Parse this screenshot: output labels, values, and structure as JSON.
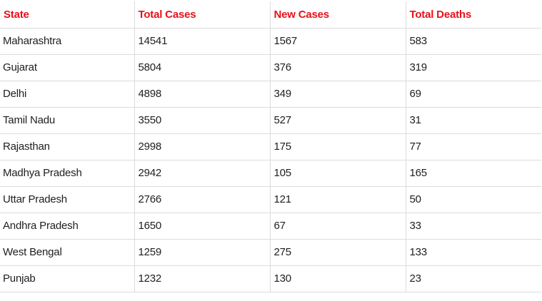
{
  "table": {
    "headers": [
      "State",
      "Total Cases",
      "New Cases",
      "Total Deaths"
    ],
    "rows": [
      [
        "Maharashtra",
        "14541",
        "1567",
        "583"
      ],
      [
        "Gujarat",
        "5804",
        "376",
        "319"
      ],
      [
        "Delhi",
        "4898",
        "349",
        "69"
      ],
      [
        "Tamil Nadu",
        "3550",
        "527",
        "31"
      ],
      [
        "Rajasthan",
        "2998",
        "175",
        "77"
      ],
      [
        "Madhya Pradesh",
        "2942",
        "105",
        "165"
      ],
      [
        "Uttar Pradesh",
        "2766",
        "121",
        "50"
      ],
      [
        "Andhra Pradesh",
        "1650",
        "67",
        "33"
      ],
      [
        "West Bengal",
        "1259",
        "275",
        "133"
      ],
      [
        "Punjab",
        "1232",
        "130",
        "23"
      ]
    ]
  },
  "colors": {
    "header_text": "#e8101a",
    "body_text": "#202020",
    "grid_line": "#dcdcdc",
    "background": "#ffffff"
  }
}
